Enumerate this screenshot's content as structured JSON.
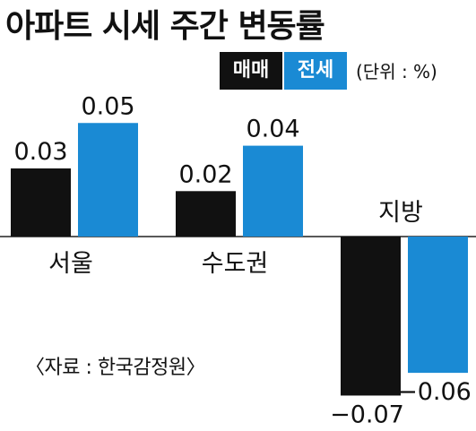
{
  "title": "아파트 시세 주간 변동률",
  "unit": "(단위 : %)",
  "source": "〈자료 : 한국감정원〉",
  "colors": {
    "sale": "#111111",
    "jeonse": "#1a8ad4"
  },
  "chart_data": {
    "type": "bar",
    "categories": [
      "서울",
      "수도권",
      "지방"
    ],
    "series": [
      {
        "name": "매매",
        "values": [
          0.03,
          0.02,
          -0.07
        ],
        "labels": [
          "0.03",
          "0.02",
          "−0.07"
        ]
      },
      {
        "name": "전세",
        "values": [
          0.05,
          0.04,
          -0.06
        ],
        "labels": [
          "0.05",
          "0.04",
          "−0.06"
        ]
      }
    ],
    "legend": "top-right",
    "grid": false
  }
}
